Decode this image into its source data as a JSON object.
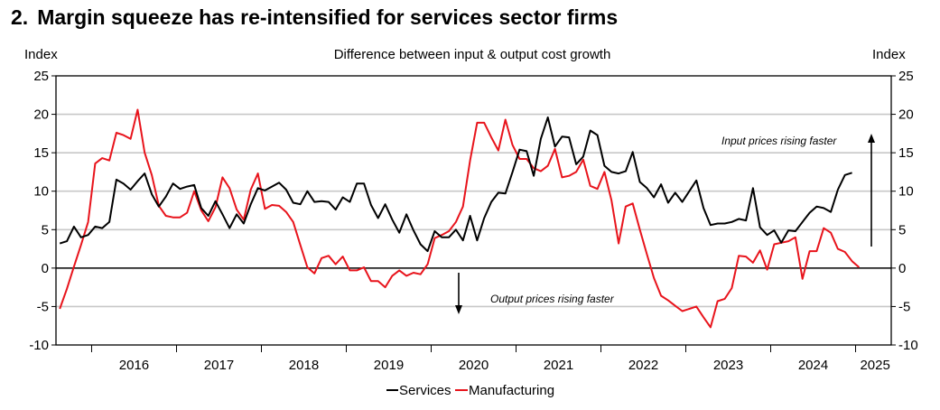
{
  "header": {
    "number": "2.",
    "title": "Margin squeeze has re-intensified for services sector firms"
  },
  "chart_data": {
    "type": "line",
    "title": "Difference between input & output cost growth",
    "ylabel_left": "Index",
    "ylabel_right": "Index",
    "ylim": [
      -10,
      25
    ],
    "yticks": [
      -10,
      -5,
      0,
      5,
      10,
      15,
      20,
      25
    ],
    "xlim": [
      2015.58,
      2025.42
    ],
    "xticks": [
      "2016",
      "2017",
      "2018",
      "2019",
      "2020",
      "2021",
      "2022",
      "2023",
      "2024",
      "2025"
    ],
    "grid": true,
    "legend": "bottom-center",
    "annotations": {
      "up": "Input prices rising faster",
      "down": "Output prices rising faster"
    },
    "series": [
      {
        "name": "Services",
        "color": "#000000",
        "x_start": 2015.625,
        "step": 0.08333,
        "values": [
          3.2,
          3.5,
          5.4,
          4.0,
          4.3,
          5.4,
          5.2,
          6.0,
          11.5,
          11.0,
          10.2,
          11.3,
          12.3,
          9.6,
          8.0,
          9.3,
          11.0,
          10.3,
          10.6,
          10.8,
          7.8,
          6.8,
          8.7,
          7.0,
          5.2,
          7.0,
          5.8,
          8.3,
          10.4,
          10.1,
          10.6,
          11.1,
          10.2,
          8.5,
          8.3,
          10.0,
          8.6,
          8.7,
          8.6,
          7.6,
          9.2,
          8.6,
          11.0,
          11.0,
          8.2,
          6.5,
          8.3,
          6.3,
          4.6,
          7.0,
          4.9,
          3.1,
          2.2,
          4.8,
          4.0,
          4.0,
          5.0,
          3.6,
          6.8,
          3.6,
          6.5,
          8.6,
          9.8,
          9.7,
          12.5,
          15.4,
          15.2,
          12.0,
          16.8,
          19.6,
          15.8,
          17.1,
          17.0,
          13.5,
          14.5,
          17.9,
          17.3,
          13.3,
          12.5,
          12.3,
          12.6,
          15.1,
          11.2,
          10.4,
          9.2,
          10.9,
          8.5,
          9.8,
          8.6,
          10.0,
          11.4,
          7.8,
          5.6,
          5.8,
          5.8,
          6.0,
          6.4,
          6.2,
          10.4,
          5.3,
          4.3,
          4.9,
          3.3,
          4.9,
          4.8,
          6.0,
          7.2,
          8.0,
          7.8,
          7.3,
          10.2,
          12.1,
          12.4
        ]
      },
      {
        "name": "Manufacturing",
        "color": "#e8141c",
        "x_start": 2015.625,
        "step": 0.08333,
        "values": [
          -5.3,
          -2.7,
          0.2,
          3.0,
          6.0,
          13.6,
          14.3,
          14.0,
          17.6,
          17.3,
          16.8,
          20.6,
          15.0,
          12.1,
          8.1,
          6.8,
          6.6,
          6.6,
          7.2,
          10.0,
          7.5,
          6.1,
          7.9,
          11.8,
          10.4,
          7.6,
          6.3,
          10.2,
          12.3,
          7.7,
          8.2,
          8.1,
          7.3,
          6.0,
          3.0,
          0.1,
          -0.7,
          1.3,
          1.6,
          0.5,
          1.5,
          -0.3,
          -0.3,
          0.1,
          -1.7,
          -1.7,
          -2.5,
          -1.0,
          -0.3,
          -1.0,
          -0.6,
          -0.8,
          0.5,
          3.9,
          4.3,
          4.8,
          6.0,
          8.0,
          14.0,
          18.9,
          18.9,
          17.0,
          15.3,
          19.3,
          16.0,
          14.2,
          14.2,
          13.0,
          12.6,
          13.3,
          15.5,
          11.8,
          12.0,
          12.5,
          14.1,
          10.7,
          10.3,
          12.5,
          8.8,
          3.2,
          8.0,
          8.4,
          5.0,
          1.8,
          -1.3,
          -3.6,
          -4.2,
          -4.9,
          -5.6,
          -5.3,
          -5.0,
          -6.4,
          -7.7,
          -4.3,
          -4.0,
          -2.6,
          1.6,
          1.5,
          0.7,
          2.3,
          -0.2,
          3.1,
          3.3,
          3.5,
          4.0,
          -1.4,
          2.2,
          2.2,
          5.2,
          4.6,
          2.5,
          2.1,
          0.9,
          0.1
        ]
      }
    ]
  }
}
